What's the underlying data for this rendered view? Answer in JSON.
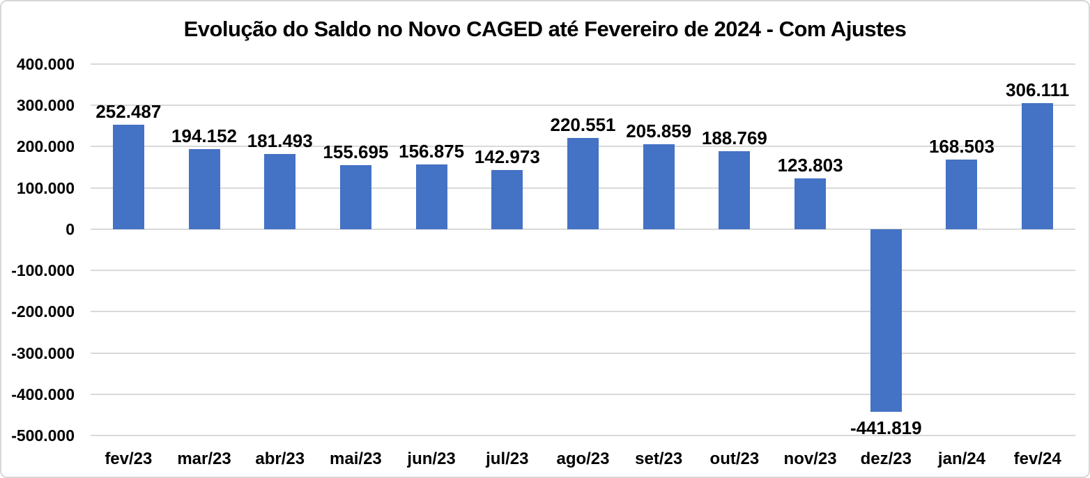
{
  "chart_data": {
    "type": "bar",
    "title": "Evolução do Saldo no Novo CAGED até Fevereiro de 2024 - Com Ajustes",
    "xlabel": "",
    "ylabel": "",
    "categories": [
      "fev/23",
      "mar/23",
      "abr/23",
      "mai/23",
      "jun/23",
      "jul/23",
      "ago/23",
      "set/23",
      "out/23",
      "nov/23",
      "dez/23",
      "jan/24",
      "fev/24"
    ],
    "values": [
      252487,
      194152,
      181493,
      155695,
      156875,
      142973,
      220551,
      205859,
      188769,
      123803,
      -441819,
      168503,
      306111
    ],
    "value_labels": [
      "252.487",
      "194.152",
      "181.493",
      "155.695",
      "156.875",
      "142.973",
      "220.551",
      "205.859",
      "188.769",
      "123.803",
      "-441.819",
      "168.503",
      "306.111"
    ],
    "ylim": [
      -500000,
      400000
    ],
    "y_tick_step": 100000,
    "y_tick_labels": [
      "400.000",
      "300.000",
      "200.000",
      "100.000",
      "0",
      "-100.000",
      "-200.000",
      "-300.000",
      "-400.000",
      "-500.000"
    ],
    "grid": true,
    "legend": false,
    "colors": {
      "bar": "#4472C4",
      "gridline": "#D9D9D9",
      "text": "#000000",
      "background": "#FFFFFF"
    }
  }
}
